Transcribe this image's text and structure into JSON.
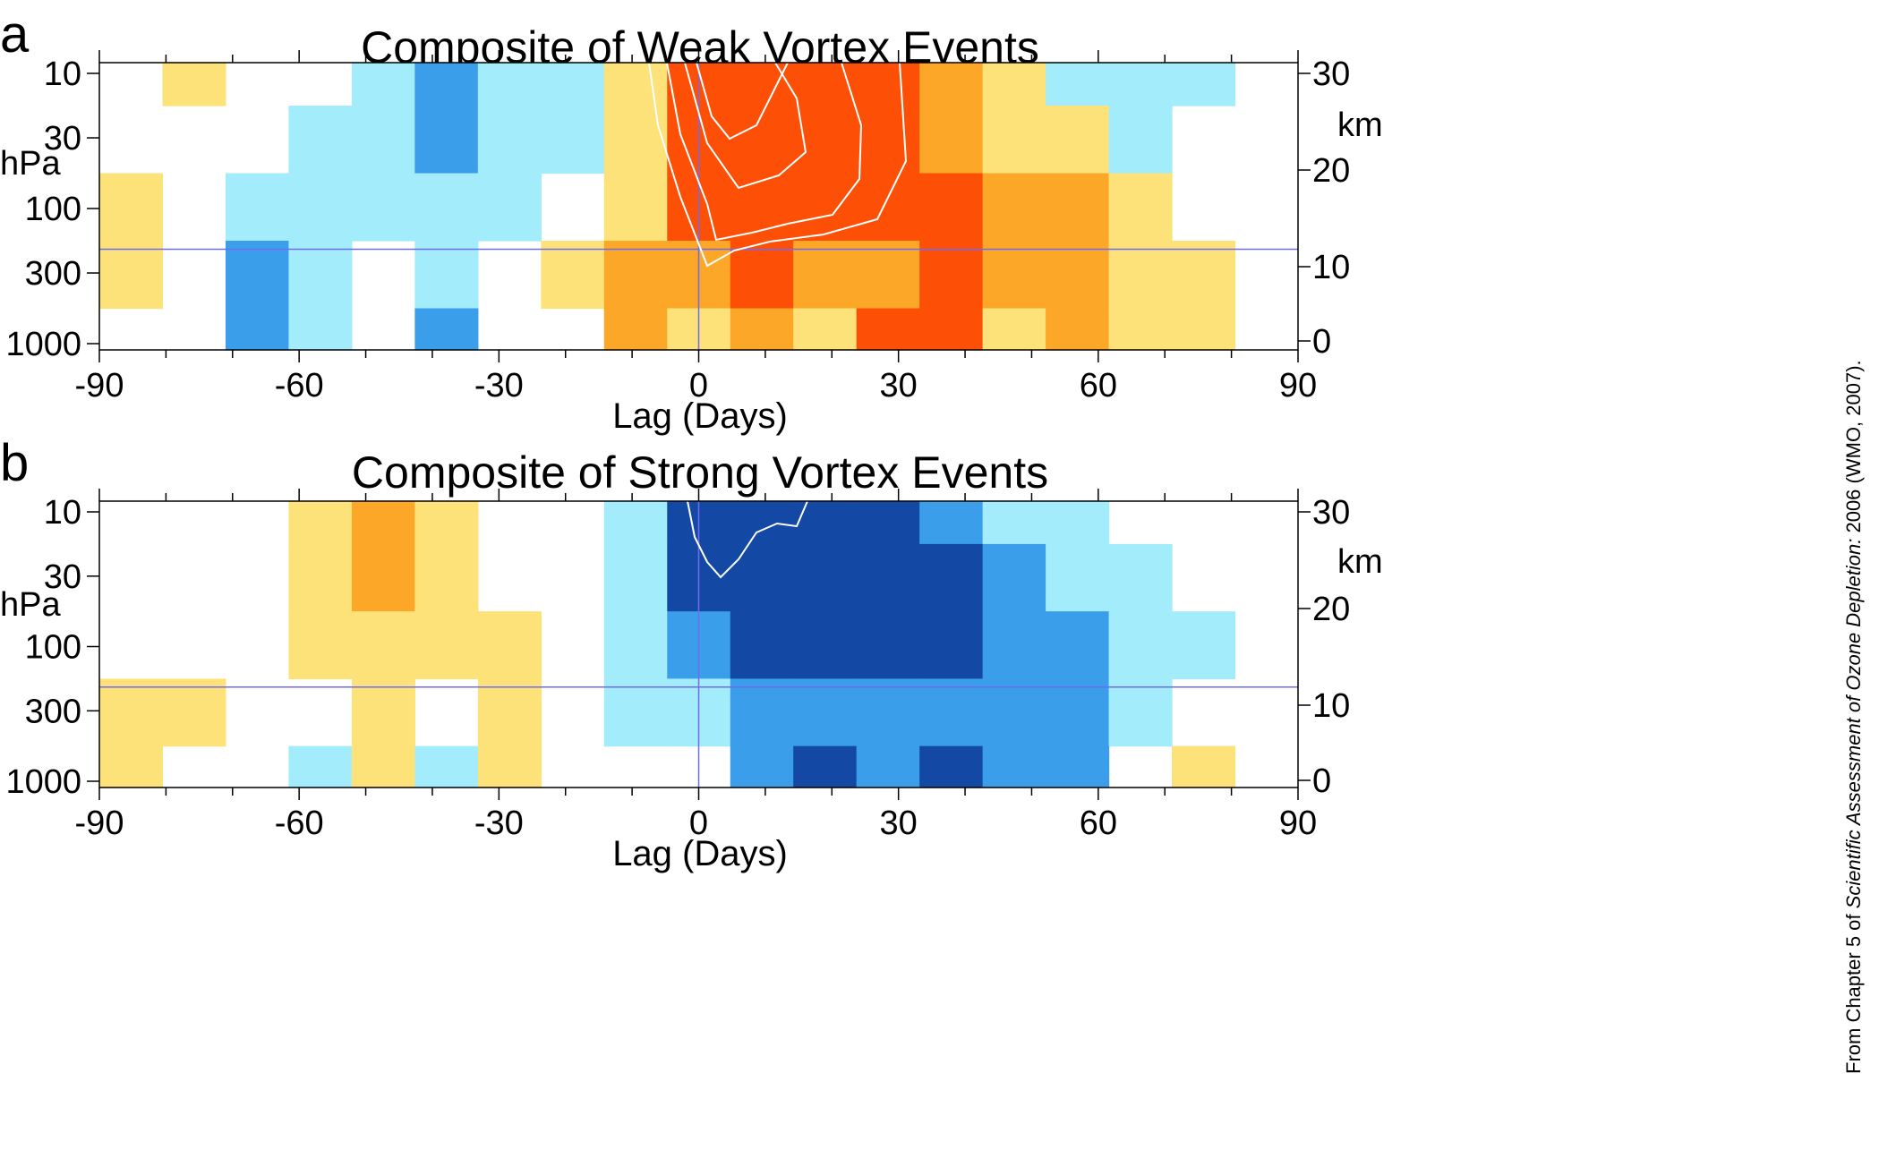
{
  "figure": {
    "credit": {
      "prefix": "From Chapter 5 of ",
      "italic": "Scientific Assessment of Ozone Depletion:",
      "suffix": " 2006 (WMO, 2007)."
    }
  },
  "colors": {
    "pos1": "#fde27a",
    "pos2": "#fca727",
    "pos3": "#fd5006",
    "neg1": "#a3ecfb",
    "neg2": "#3a9eea",
    "neg3": "#1349a5",
    "refline": "#6f6cf0",
    "contour": "#ffffff"
  },
  "chart_data": [
    {
      "type": "heatmap",
      "panel": "a",
      "title": "Composite of Weak Vortex Events",
      "xlabel": "Lag (Days)",
      "ylabel": "hPa",
      "y2label": "km",
      "xlim": [
        -90,
        90
      ],
      "xticks": [
        -90,
        -60,
        -30,
        0,
        30,
        60,
        90
      ],
      "yticks": [
        "10",
        "30",
        "100",
        "300",
        "1000"
      ],
      "yticks_right": [
        "30",
        "20",
        "10",
        "0"
      ],
      "reference_lines": {
        "lag": 0,
        "pressure_hPa": 200
      },
      "x": [
        -90,
        -80,
        -70,
        -60,
        -50,
        -40,
        -30,
        -20,
        -10,
        0,
        10,
        20,
        30,
        40,
        50,
        60,
        70,
        80,
        90
      ],
      "y": [
        10,
        30,
        100,
        300,
        1000
      ],
      "z": [
        [
          0,
          1,
          0,
          0,
          -1,
          -2,
          -1,
          -1,
          1,
          3,
          4,
          4,
          3,
          2,
          1,
          -1,
          -1,
          -1,
          0
        ],
        [
          0,
          0,
          0,
          -1,
          -1,
          -2,
          -1,
          -1,
          1,
          3,
          5,
          4,
          3,
          2,
          1,
          1,
          -1,
          0,
          0
        ],
        [
          1,
          0,
          -1,
          -1,
          -1,
          -1,
          -1,
          0,
          1,
          3,
          4,
          4,
          3,
          3,
          2,
          2,
          1,
          0,
          0
        ],
        [
          1,
          0,
          -2,
          -1,
          0,
          -1,
          0,
          1,
          2,
          2,
          3,
          2,
          2,
          3,
          2,
          2,
          1,
          1,
          0
        ],
        [
          0,
          0,
          -2,
          -1,
          0,
          -2,
          0,
          0,
          2,
          1,
          2,
          1,
          3,
          3,
          1,
          2,
          1,
          1,
          0
        ]
      ]
    },
    {
      "type": "heatmap",
      "panel": "b",
      "title": "Composite of Strong Vortex Events",
      "xlabel": "Lag (Days)",
      "ylabel": "hPa",
      "y2label": "km",
      "xlim": [
        -90,
        90
      ],
      "xticks": [
        -90,
        -60,
        -30,
        0,
        30,
        60,
        90
      ],
      "yticks": [
        "10",
        "30",
        "100",
        "300",
        "1000"
      ],
      "yticks_right": [
        "30",
        "20",
        "10",
        "0"
      ],
      "reference_lines": {
        "lag": 0,
        "pressure_hPa": 200
      },
      "x": [
        -90,
        -80,
        -70,
        -60,
        -50,
        -40,
        -30,
        -20,
        -10,
        0,
        10,
        20,
        30,
        40,
        50,
        60,
        70,
        80,
        90
      ],
      "y": [
        10,
        30,
        100,
        300,
        1000
      ],
      "z": [
        [
          0,
          0,
          0,
          1,
          2,
          1,
          0,
          0,
          -1,
          -3,
          -4,
          -3,
          -3,
          -2,
          -1,
          -1,
          0,
          0,
          0
        ],
        [
          0,
          0,
          0,
          1,
          2,
          1,
          0,
          0,
          -1,
          -3,
          -3,
          -3,
          -3,
          -3,
          -2,
          -1,
          -1,
          0,
          0
        ],
        [
          0,
          0,
          0,
          1,
          1,
          1,
          1,
          0,
          -1,
          -2,
          -3,
          -3,
          -3,
          -3,
          -2,
          -2,
          -1,
          -1,
          0
        ],
        [
          1,
          1,
          0,
          0,
          1,
          0,
          1,
          0,
          -1,
          -1,
          -2,
          -2,
          -2,
          -2,
          -2,
          -2,
          -1,
          0,
          0
        ],
        [
          1,
          0,
          0,
          -1,
          1,
          -1,
          1,
          0,
          0,
          0,
          -2,
          -3,
          -2,
          -3,
          -2,
          -2,
          0,
          1,
          0
        ]
      ]
    }
  ]
}
